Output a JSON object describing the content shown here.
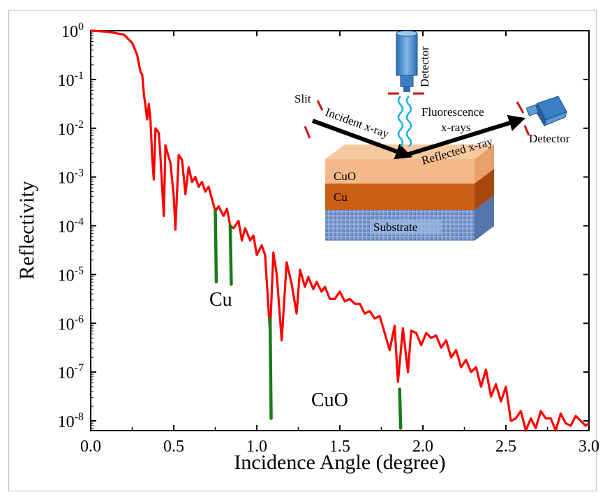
{
  "chart_data": {
    "type": "line",
    "xlabel": "Incidence Angle (degree)",
    "ylabel": "Reflectivity",
    "xlim": [
      0.0,
      3.0
    ],
    "ylim_log10": [
      -8.2,
      0
    ],
    "y_scale": "log",
    "grid": false,
    "series_color": "#ff0000",
    "marker_color": "#1a7a1a",
    "x_ticks": [
      "0.0",
      "0.5",
      "1.0",
      "1.5",
      "2.0",
      "2.5",
      "3.0"
    ],
    "x_tick_values": [
      0.0,
      0.5,
      1.0,
      1.5,
      2.0,
      2.5,
      3.0
    ],
    "y_tick_values": [
      0,
      -1,
      -2,
      -3,
      -4,
      -5,
      -6,
      -7,
      -8
    ],
    "y_tick_base": "10",
    "y_tick_exponents": [
      "0",
      "-1",
      "-2",
      "-3",
      "-4",
      "-5",
      "-6",
      "-7",
      "-8"
    ],
    "series": [
      {
        "x": [
          0.0,
          0.1,
          0.2,
          0.25,
          0.28,
          0.3,
          0.31,
          0.32,
          0.33,
          0.34,
          0.35,
          0.36,
          0.37,
          0.38,
          0.39,
          0.41,
          0.42,
          0.44,
          0.45,
          0.47,
          0.48,
          0.5,
          0.51,
          0.53,
          0.55,
          0.57,
          0.59,
          0.61,
          0.63,
          0.65,
          0.67,
          0.69,
          0.71,
          0.73,
          0.75,
          0.77,
          0.8,
          0.82,
          0.84,
          0.86,
          0.89,
          0.91,
          0.93,
          0.96,
          0.98,
          1.0,
          1.03,
          1.05,
          1.08,
          1.1,
          1.12,
          1.15,
          1.18,
          1.21,
          1.24,
          1.26,
          1.29,
          1.31,
          1.34,
          1.36,
          1.39,
          1.41,
          1.44,
          1.47,
          1.5,
          1.53,
          1.56,
          1.59,
          1.62,
          1.65,
          1.68,
          1.71,
          1.74,
          1.77,
          1.8,
          1.83,
          1.85,
          1.88,
          1.91,
          1.93,
          1.96,
          1.99,
          2.02,
          2.05,
          2.08,
          2.11,
          2.14,
          2.17,
          2.2,
          2.23,
          2.26,
          2.29,
          2.32,
          2.35,
          2.38,
          2.41,
          2.44,
          2.47,
          2.5,
          2.53,
          2.56,
          2.59,
          2.62,
          2.65,
          2.68,
          2.71,
          2.74,
          2.77,
          2.8,
          2.83,
          2.86,
          2.89,
          2.92,
          2.95,
          2.98,
          3.0
        ],
        "log10_y": [
          0.0,
          -0.02,
          -0.08,
          -0.25,
          -0.5,
          -0.85,
          -0.9,
          -1.3,
          -1.55,
          -1.82,
          -1.5,
          -1.85,
          -2.6,
          -3.05,
          -2.0,
          -2.1,
          -2.6,
          -3.8,
          -2.35,
          -2.6,
          -2.7,
          -3.4,
          -4.08,
          -2.55,
          -2.65,
          -3.35,
          -2.8,
          -3.1,
          -3.0,
          -3.2,
          -3.1,
          -3.3,
          -3.2,
          -3.45,
          -3.7,
          -3.6,
          -3.8,
          -3.65,
          -4.0,
          -4.05,
          -3.9,
          -4.3,
          -4.05,
          -4.3,
          -4.2,
          -4.6,
          -4.4,
          -4.6,
          -6.2,
          -4.55,
          -5.0,
          -6.35,
          -4.75,
          -5.2,
          -5.8,
          -4.9,
          -5.25,
          -5.05,
          -5.3,
          -5.15,
          -5.35,
          -5.25,
          -5.5,
          -5.5,
          -5.35,
          -5.55,
          -5.5,
          -5.6,
          -5.6,
          -5.8,
          -5.75,
          -5.9,
          -5.85,
          -6.2,
          -6.55,
          -6.05,
          -7.2,
          -6.1,
          -7.0,
          -6.15,
          -6.2,
          -6.45,
          -6.2,
          -6.3,
          -6.25,
          -6.5,
          -6.35,
          -6.7,
          -6.55,
          -6.9,
          -6.75,
          -7.0,
          -6.9,
          -7.3,
          -6.95,
          -7.5,
          -7.25,
          -7.6,
          -7.3,
          -8.0,
          -7.95,
          -7.8,
          -8.2,
          -7.95,
          -8.15,
          -7.8,
          -7.95,
          -7.95,
          -8.2,
          -7.85,
          -8.05,
          -8.1,
          -7.9,
          -8.0,
          -8.1,
          -8.05
        ]
      }
    ],
    "element_markers": [
      {
        "x": 0.75,
        "log10_top": -3.7,
        "log10_bottom": -5.15,
        "element": "Cu"
      },
      {
        "x": 0.84,
        "log10_top": -4.0,
        "log10_bottom": -5.2,
        "element": "Cu"
      },
      {
        "x": 1.08,
        "log10_top": -5.9,
        "log10_bottom": -7.95,
        "element": "CuO"
      },
      {
        "x": 1.86,
        "log10_top": -7.35,
        "log10_bottom": -8.15,
        "element": "CuO"
      }
    ],
    "annotations": {
      "cu_label": "Cu",
      "cuo_label": "CuO"
    }
  },
  "inset": {
    "slit": "Slit",
    "incident": "Incident x-ray",
    "fluorescence": "Fluorescence",
    "xrays": "x-rays",
    "reflected": "Reflected x-ray",
    "detector_top": "Detector",
    "detector_right": "Detector",
    "layer_cuo": "CuO",
    "layer_cu": "Cu",
    "substrate": "Substrate"
  }
}
